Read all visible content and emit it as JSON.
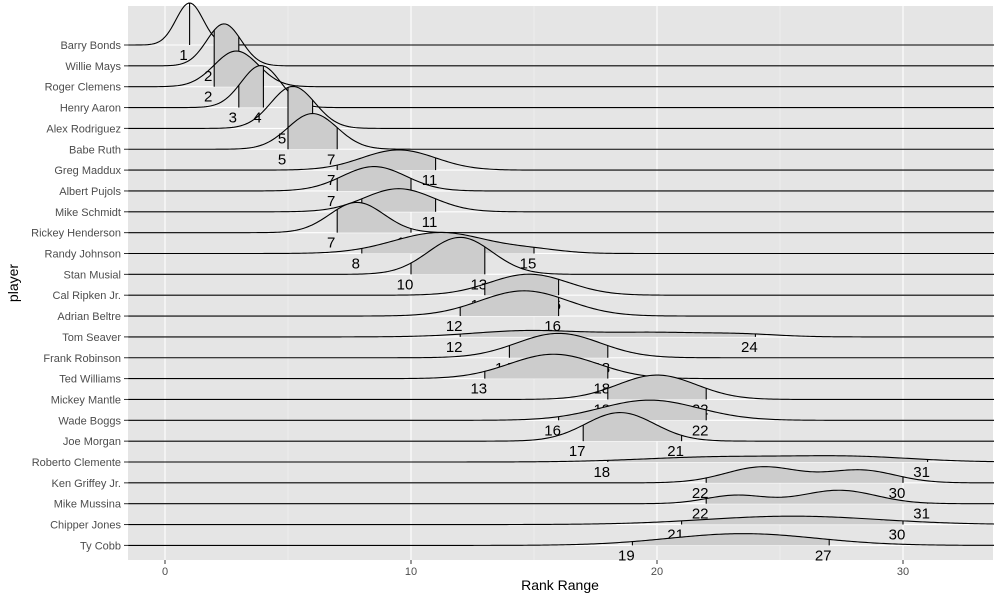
{
  "chart_data": {
    "type": "ridgeline",
    "title": "",
    "xlabel": "Rank Range",
    "ylabel": "player",
    "xlim": [
      -1.5,
      33.7
    ],
    "xticks": [
      0,
      10,
      20,
      30
    ],
    "grid": true,
    "panel_color": "#e5e5e5",
    "fill_color": "#cccccc",
    "players": [
      {
        "name": "Barry Bonds",
        "low": 1,
        "high": 1,
        "bumps": [
          [
            1,
            0.55,
            1.0
          ]
        ]
      },
      {
        "name": "Willie Mays",
        "low": 2,
        "high": 3,
        "bumps": [
          [
            2.4,
            0.7,
            1.0
          ]
        ]
      },
      {
        "name": "Roger Clemens",
        "low": 2,
        "high": 4,
        "bumps": [
          [
            2.9,
            0.9,
            0.85
          ]
        ]
      },
      {
        "name": "Henry Aaron",
        "low": 3,
        "high": 4,
        "bumps": [
          [
            3.9,
            0.8,
            1.0
          ]
        ]
      },
      {
        "name": "Alex Rodriguez",
        "low": 5,
        "high": 6,
        "bumps": [
          [
            5.2,
            0.9,
            1.0
          ]
        ]
      },
      {
        "name": "Babe Ruth",
        "low": 5,
        "high": 7,
        "bumps": [
          [
            6.0,
            1.0,
            0.85
          ]
        ]
      },
      {
        "name": "Greg Maddux",
        "low": 7,
        "high": 11,
        "bumps": [
          [
            9.5,
            1.5,
            0.48
          ]
        ]
      },
      {
        "name": "Albert Pujols",
        "low": 7,
        "high": 10,
        "bumps": [
          [
            8.5,
            1.3,
            0.58
          ]
        ]
      },
      {
        "name": "Mike Schmidt",
        "low": 8,
        "high": 11,
        "bumps": [
          [
            9.5,
            1.4,
            0.55
          ]
        ]
      },
      {
        "name": "Rickey Henderson",
        "low": 7,
        "high": 10,
        "bumps": [
          [
            7.8,
            1.1,
            0.72
          ]
        ]
      },
      {
        "name": "Randy Johnson",
        "low": 8,
        "high": 15,
        "bumps": [
          [
            11.2,
            1.9,
            0.5
          ],
          [
            15.0,
            1.2,
            0.08
          ]
        ]
      },
      {
        "name": "Stan Musial",
        "low": 10,
        "high": 13,
        "bumps": [
          [
            12.0,
            1.3,
            0.88
          ]
        ]
      },
      {
        "name": "Cal Ripken Jr.",
        "low": 13,
        "high": 16,
        "bumps": [
          [
            14.8,
            1.6,
            0.5
          ]
        ]
      },
      {
        "name": "Adrian Beltre",
        "low": 12,
        "high": 16,
        "bumps": [
          [
            14.6,
            1.8,
            0.6
          ]
        ]
      },
      {
        "name": "Tom Seaver",
        "low": 12,
        "high": 24,
        "bumps": [
          [
            14.8,
            2.2,
            0.15
          ],
          [
            20.0,
            2.0,
            0.1
          ],
          [
            23.5,
            1.5,
            0.06
          ]
        ]
      },
      {
        "name": "Frank Robinson",
        "low": 14,
        "high": 18,
        "bumps": [
          [
            16.0,
            1.7,
            0.58
          ]
        ]
      },
      {
        "name": "Ted Williams",
        "low": 13,
        "high": 18,
        "bumps": [
          [
            15.8,
            1.8,
            0.58
          ]
        ]
      },
      {
        "name": "Mickey Mantle",
        "low": 18,
        "high": 22,
        "bumps": [
          [
            20.0,
            1.6,
            0.58
          ]
        ]
      },
      {
        "name": "Wade Boggs",
        "low": 16,
        "high": 22,
        "bumps": [
          [
            19.7,
            2.0,
            0.48
          ]
        ]
      },
      {
        "name": "Joe Morgan",
        "low": 17,
        "high": 21,
        "bumps": [
          [
            18.5,
            1.4,
            0.68
          ]
        ]
      },
      {
        "name": "Roberto Clemente",
        "low": 18,
        "high": 31,
        "bumps": [
          [
            22.5,
            3.0,
            0.12
          ],
          [
            28.0,
            2.5,
            0.12
          ]
        ]
      },
      {
        "name": "Ken Griffey Jr.",
        "low": 22,
        "high": 30,
        "bumps": [
          [
            24.3,
            1.5,
            0.38
          ],
          [
            28.3,
            1.4,
            0.3
          ]
        ]
      },
      {
        "name": "Mike Mussina",
        "low": 22,
        "high": 31,
        "bumps": [
          [
            23.2,
            1.2,
            0.2
          ],
          [
            27.4,
            1.5,
            0.32
          ]
        ]
      },
      {
        "name": "Chipper Jones",
        "low": 21,
        "high": 30,
        "bumps": [
          [
            25.5,
            3.5,
            0.2
          ]
        ]
      },
      {
        "name": "Ty Cobb",
        "low": 19,
        "high": 27,
        "bumps": [
          [
            23.5,
            3.0,
            0.28
          ]
        ]
      }
    ]
  }
}
